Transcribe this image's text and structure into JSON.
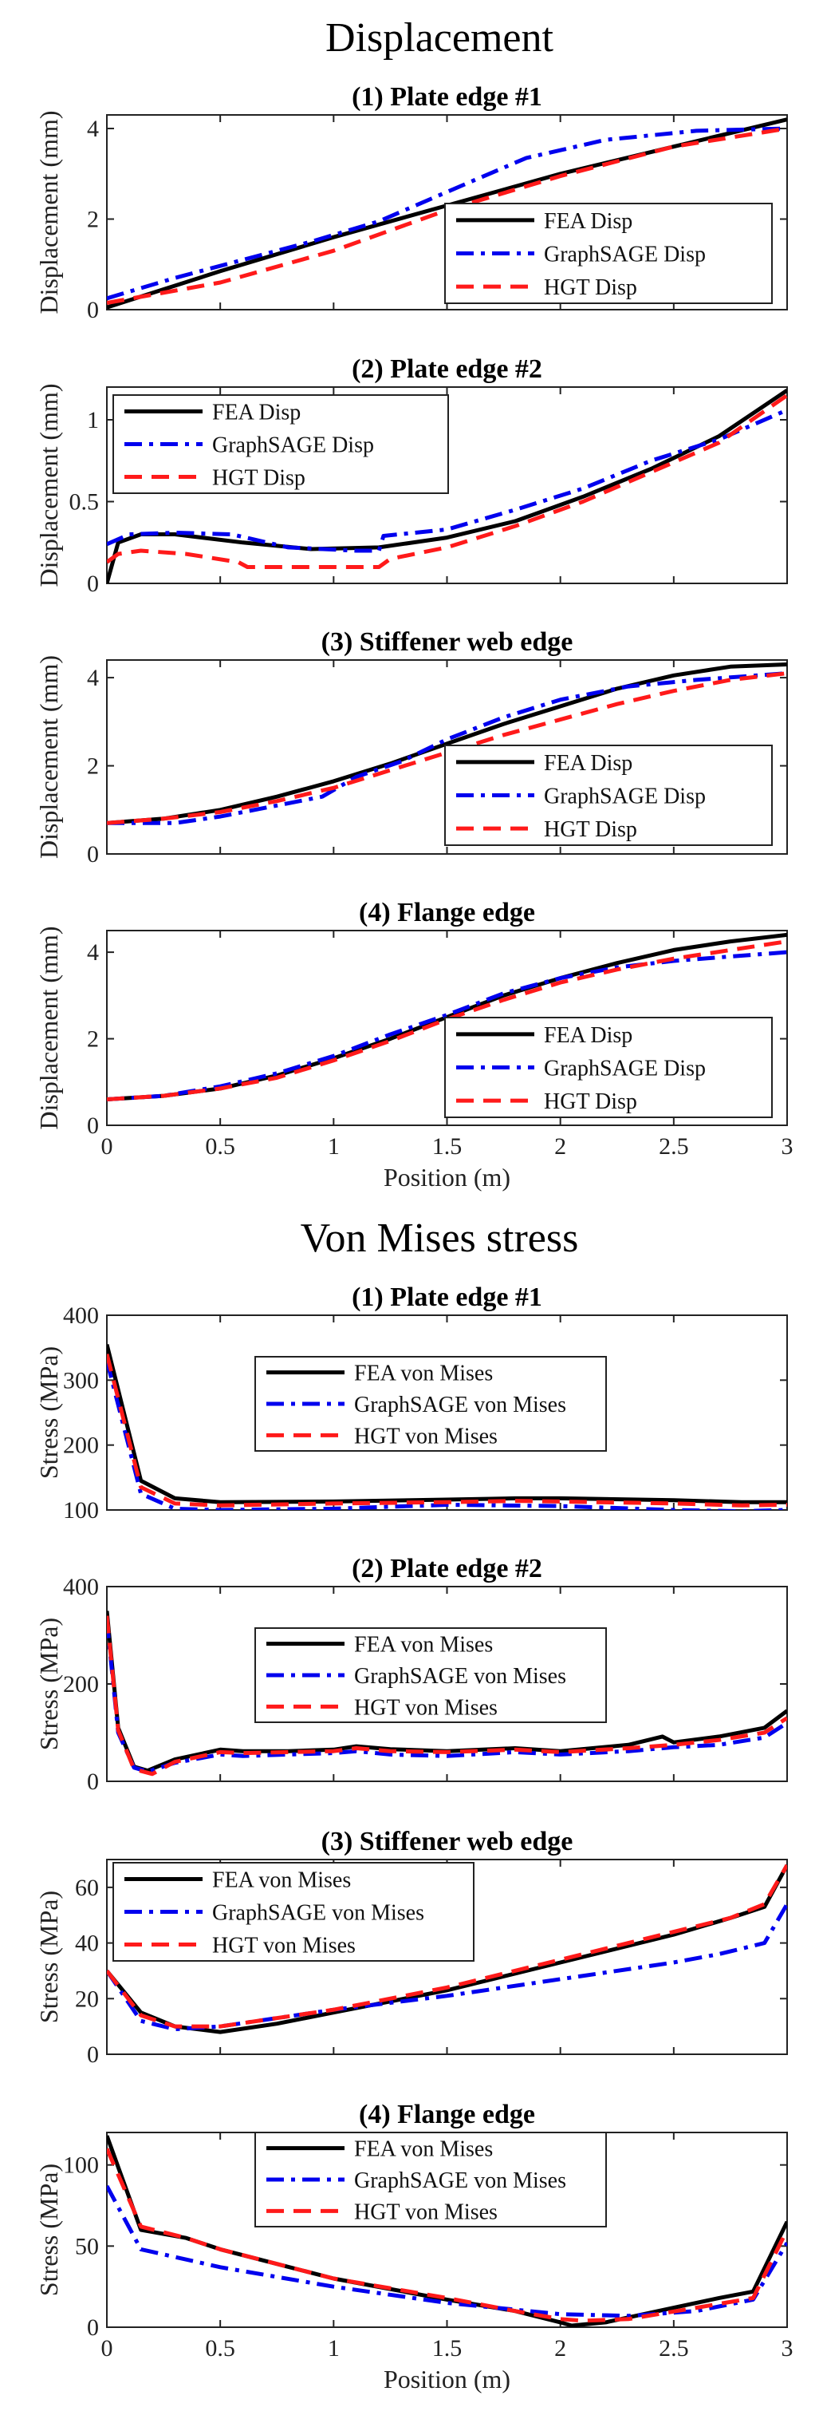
{
  "figure": {
    "displacement_title": "Displacement",
    "stress_title": "Von Mises stress"
  },
  "colors": {
    "fea": "#000000",
    "graphsage": "#0000ee",
    "hgt": "#ff1a1a"
  },
  "chart_data": [
    {
      "type": "line",
      "group": "displacement",
      "title": "(1) Plate edge #1",
      "xlabel": "",
      "ylabel": "Displacement (mm)",
      "xlim": [
        0,
        3
      ],
      "ylim": [
        0,
        4.3
      ],
      "xticks": [],
      "yticks": [
        0,
        2,
        4
      ],
      "legend_loc": "bottom-right",
      "series": [
        {
          "name": "FEA Disp",
          "style": "fea",
          "x": [
            0,
            0.5,
            1.0,
            1.5,
            2.0,
            2.5,
            3.0
          ],
          "y": [
            0.05,
            0.85,
            1.6,
            2.3,
            3.0,
            3.6,
            4.2
          ]
        },
        {
          "name": "GraphSAGE Disp",
          "style": "graphsage",
          "x": [
            0,
            0.3,
            0.6,
            0.9,
            1.2,
            1.5,
            1.85,
            2.2,
            2.6,
            3.0
          ],
          "y": [
            0.25,
            0.7,
            1.1,
            1.5,
            1.95,
            2.6,
            3.35,
            3.75,
            3.95,
            4.0
          ]
        },
        {
          "name": "HGT Disp",
          "style": "hgt",
          "x": [
            0,
            0.5,
            1.0,
            1.5,
            2.0,
            2.5,
            3.0
          ],
          "y": [
            0.15,
            0.6,
            1.3,
            2.2,
            2.95,
            3.6,
            4.0
          ]
        }
      ]
    },
    {
      "type": "line",
      "group": "displacement",
      "title": "(2) Plate edge #2",
      "xlabel": "",
      "ylabel": "Displacement (mm)",
      "xlim": [
        0,
        3
      ],
      "ylim": [
        0,
        1.2
      ],
      "xticks": [],
      "yticks": [
        0,
        0.5,
        1
      ],
      "legend_loc": "top-left",
      "series": [
        {
          "name": "FEA Disp",
          "style": "fea",
          "x": [
            0,
            0.05,
            0.15,
            0.3,
            0.6,
            0.9,
            1.2,
            1.5,
            1.8,
            2.1,
            2.4,
            2.7,
            3.0
          ],
          "y": [
            0.0,
            0.25,
            0.3,
            0.3,
            0.25,
            0.21,
            0.22,
            0.28,
            0.38,
            0.53,
            0.7,
            0.9,
            1.18
          ]
        },
        {
          "name": "GraphSAGE Disp",
          "style": "graphsage",
          "x": [
            0,
            0.1,
            0.3,
            0.55,
            0.8,
            1.1,
            1.2,
            1.22,
            1.5,
            1.8,
            2.1,
            2.4,
            2.7,
            3.0
          ],
          "y": [
            0.24,
            0.3,
            0.31,
            0.3,
            0.22,
            0.2,
            0.2,
            0.29,
            0.33,
            0.45,
            0.58,
            0.75,
            0.88,
            1.06
          ]
        },
        {
          "name": "HGT Disp",
          "style": "hgt",
          "x": [
            0,
            0.05,
            0.15,
            0.35,
            0.58,
            0.62,
            0.8,
            1.0,
            1.2,
            1.25,
            1.5,
            1.8,
            2.1,
            2.4,
            2.7,
            3.0
          ],
          "y": [
            0.13,
            0.18,
            0.2,
            0.18,
            0.13,
            0.1,
            0.1,
            0.1,
            0.1,
            0.15,
            0.22,
            0.35,
            0.5,
            0.68,
            0.86,
            1.15
          ]
        }
      ]
    },
    {
      "type": "line",
      "group": "displacement",
      "title": "(3) Stiffener web edge",
      "xlabel": "",
      "ylabel": "Displacement (mm)",
      "xlim": [
        0,
        3
      ],
      "ylim": [
        0,
        4.4
      ],
      "xticks": [],
      "yticks": [
        0,
        2,
        4
      ],
      "legend_loc": "bottom-right",
      "series": [
        {
          "name": "FEA Disp",
          "style": "fea",
          "x": [
            0,
            0.25,
            0.5,
            0.75,
            1.0,
            1.25,
            1.5,
            1.75,
            2.0,
            2.25,
            2.5,
            2.75,
            3.0
          ],
          "y": [
            0.7,
            0.8,
            1.0,
            1.3,
            1.65,
            2.05,
            2.5,
            2.95,
            3.35,
            3.75,
            4.05,
            4.25,
            4.3
          ]
        },
        {
          "name": "GraphSAGE Disp",
          "style": "graphsage",
          "x": [
            0,
            0.3,
            0.5,
            0.75,
            0.95,
            1.1,
            1.3,
            1.5,
            1.75,
            2.0,
            2.3,
            2.6,
            3.0
          ],
          "y": [
            0.7,
            0.7,
            0.85,
            1.1,
            1.3,
            1.75,
            2.1,
            2.6,
            3.1,
            3.5,
            3.8,
            3.95,
            4.1
          ]
        },
        {
          "name": "HGT Disp",
          "style": "hgt",
          "x": [
            0,
            0.25,
            0.5,
            0.75,
            1.0,
            1.25,
            1.5,
            1.75,
            2.0,
            2.25,
            2.5,
            2.75,
            3.0
          ],
          "y": [
            0.7,
            0.8,
            0.95,
            1.2,
            1.5,
            1.9,
            2.3,
            2.7,
            3.05,
            3.4,
            3.7,
            3.95,
            4.1
          ]
        }
      ]
    },
    {
      "type": "line",
      "group": "displacement",
      "title": "(4) Flange edge",
      "xlabel": "Position (m)",
      "ylabel": "Displacement (mm)",
      "xlim": [
        0,
        3
      ],
      "ylim": [
        0,
        4.5
      ],
      "xticks": [
        0,
        0.5,
        1,
        1.5,
        2,
        2.5,
        3
      ],
      "yticks": [
        0,
        2,
        4
      ],
      "legend_loc": "bottom-right",
      "series": [
        {
          "name": "FEA Disp",
          "style": "fea",
          "x": [
            0,
            0.25,
            0.5,
            0.75,
            1.0,
            1.25,
            1.5,
            1.75,
            2.0,
            2.25,
            2.5,
            2.75,
            3.0
          ],
          "y": [
            0.6,
            0.68,
            0.85,
            1.15,
            1.55,
            2.0,
            2.5,
            3.0,
            3.4,
            3.75,
            4.05,
            4.25,
            4.4
          ]
        },
        {
          "name": "GraphSAGE Disp",
          "style": "graphsage",
          "x": [
            0,
            0.25,
            0.5,
            0.75,
            1.0,
            1.25,
            1.5,
            1.75,
            2.0,
            2.25,
            2.5,
            2.75,
            3.0
          ],
          "y": [
            0.6,
            0.68,
            0.9,
            1.2,
            1.6,
            2.1,
            2.55,
            3.05,
            3.4,
            3.65,
            3.8,
            3.9,
            4.0
          ]
        },
        {
          "name": "HGT Disp",
          "style": "hgt",
          "x": [
            0,
            0.25,
            0.5,
            0.75,
            1.0,
            1.25,
            1.5,
            1.75,
            2.0,
            2.25,
            2.5,
            2.75,
            3.0
          ],
          "y": [
            0.6,
            0.68,
            0.85,
            1.1,
            1.5,
            1.95,
            2.45,
            2.9,
            3.3,
            3.6,
            3.85,
            4.05,
            4.25
          ]
        }
      ]
    },
    {
      "type": "line",
      "group": "stress",
      "title": "(1) Plate edge #1",
      "xlabel": "",
      "ylabel": "Stress (MPa)",
      "xlim": [
        0,
        3
      ],
      "ylim": [
        100,
        400
      ],
      "xticks": [],
      "yticks": [
        100,
        200,
        300,
        400
      ],
      "legend_loc": "center",
      "series": [
        {
          "name": "FEA von Mises",
          "style": "fea",
          "x": [
            0,
            0.15,
            0.3,
            0.5,
            1.0,
            1.5,
            1.8,
            2.0,
            2.5,
            2.8,
            3.0
          ],
          "y": [
            355,
            145,
            118,
            112,
            113,
            116,
            118,
            118,
            115,
            112,
            112
          ]
        },
        {
          "name": "GraphSAGE von Mises",
          "style": "graphsage",
          "x": [
            0,
            0.15,
            0.3,
            0.5,
            1.0,
            1.5,
            2.0,
            2.5,
            2.8,
            3.0
          ],
          "y": [
            330,
            125,
            102,
            100,
            102,
            108,
            106,
            100,
            98,
            100
          ]
        },
        {
          "name": "HGT von Mises",
          "style": "hgt",
          "x": [
            0,
            0.15,
            0.3,
            0.5,
            1.0,
            1.5,
            1.8,
            2.0,
            2.5,
            2.8,
            3.0
          ],
          "y": [
            340,
            135,
            110,
            107,
            110,
            112,
            114,
            113,
            110,
            107,
            108
          ]
        }
      ]
    },
    {
      "type": "line",
      "group": "stress",
      "title": "(2) Plate edge #2",
      "xlabel": "",
      "ylabel": "Stress (MPa)",
      "xlim": [
        0,
        3
      ],
      "ylim": [
        0,
        400
      ],
      "xticks": [],
      "yticks": [
        0,
        200,
        400
      ],
      "legend_loc": "center-right",
      "series": [
        {
          "name": "FEA von Mises",
          "style": "fea",
          "x": [
            0,
            0.05,
            0.12,
            0.18,
            0.3,
            0.5,
            0.6,
            0.8,
            1.0,
            1.1,
            1.25,
            1.5,
            1.8,
            2.0,
            2.3,
            2.45,
            2.5,
            2.7,
            2.9,
            3.0
          ],
          "y": [
            350,
            110,
            30,
            22,
            45,
            65,
            62,
            62,
            65,
            72,
            66,
            62,
            68,
            62,
            75,
            92,
            80,
            92,
            110,
            145
          ]
        },
        {
          "name": "GraphSAGE von Mises",
          "style": "graphsage",
          "x": [
            0,
            0.05,
            0.12,
            0.18,
            0.3,
            0.5,
            0.6,
            0.8,
            1.0,
            1.1,
            1.25,
            1.5,
            1.8,
            2.0,
            2.3,
            2.5,
            2.7,
            2.9,
            3.0
          ],
          "y": [
            330,
            100,
            28,
            20,
            38,
            55,
            52,
            55,
            58,
            62,
            55,
            52,
            60,
            55,
            62,
            70,
            75,
            90,
            120
          ]
        },
        {
          "name": "HGT von Mises",
          "style": "hgt",
          "x": [
            0,
            0.05,
            0.12,
            0.2,
            0.3,
            0.5,
            0.6,
            0.8,
            1.0,
            1.1,
            1.25,
            1.5,
            1.8,
            2.0,
            2.3,
            2.5,
            2.7,
            2.9,
            3.0
          ],
          "y": [
            340,
            105,
            25,
            15,
            40,
            60,
            58,
            60,
            62,
            68,
            62,
            60,
            65,
            60,
            68,
            75,
            85,
            100,
            130
          ]
        }
      ]
    },
    {
      "type": "line",
      "group": "stress",
      "title": "(3) Stiffener web edge",
      "xlabel": "",
      "ylabel": "Stress (MPa)",
      "xlim": [
        0,
        3
      ],
      "ylim": [
        0,
        70
      ],
      "xticks": [],
      "yticks": [
        0,
        20,
        40,
        60
      ],
      "legend_loc": "top-left",
      "series": [
        {
          "name": "FEA von Mises",
          "style": "fea",
          "x": [
            0,
            0.15,
            0.3,
            0.5,
            0.75,
            1.0,
            1.5,
            2.0,
            2.5,
            2.75,
            2.9,
            3.0
          ],
          "y": [
            30,
            15,
            10,
            8,
            11,
            15,
            23,
            33,
            43,
            49,
            53,
            68
          ]
        },
        {
          "name": "GraphSAGE von Mises",
          "style": "graphsage",
          "x": [
            0,
            0.15,
            0.3,
            0.5,
            1.0,
            1.5,
            2.0,
            2.5,
            2.7,
            2.9,
            3.0
          ],
          "y": [
            30,
            12,
            9,
            10,
            16,
            21,
            27,
            33,
            36,
            40,
            54
          ]
        },
        {
          "name": "HGT von Mises",
          "style": "hgt",
          "x": [
            0,
            0.15,
            0.3,
            0.5,
            1.0,
            1.5,
            2.0,
            2.5,
            2.75,
            2.9,
            3.0
          ],
          "y": [
            30,
            14,
            10,
            10,
            16,
            24,
            34,
            44,
            49,
            54,
            68
          ]
        }
      ]
    },
    {
      "type": "line",
      "group": "stress",
      "title": "(4) Flange edge",
      "xlabel": "Position (m)",
      "ylabel": "Stress (MPa)",
      "xlim": [
        0,
        3
      ],
      "ylim": [
        0,
        120
      ],
      "xticks": [
        0,
        0.5,
        1,
        1.5,
        2,
        2.5,
        3
      ],
      "yticks": [
        0,
        50,
        100
      ],
      "legend_loc": "top-center",
      "series": [
        {
          "name": "FEA von Mises",
          "style": "fea",
          "x": [
            0,
            0.15,
            0.35,
            0.5,
            1.0,
            1.5,
            1.8,
            2.0,
            2.05,
            2.2,
            2.5,
            2.7,
            2.85,
            3.0
          ],
          "y": [
            118,
            60,
            55,
            48,
            30,
            17,
            10,
            3,
            1,
            3,
            12,
            18,
            22,
            65
          ]
        },
        {
          "name": "GraphSAGE von Mises",
          "style": "graphsage",
          "x": [
            0,
            0.15,
            0.5,
            1.0,
            1.5,
            2.0,
            2.3,
            2.6,
            2.85,
            3.0
          ],
          "y": [
            87,
            48,
            37,
            25,
            15,
            8,
            7,
            10,
            17,
            52
          ]
        },
        {
          "name": "HGT von Mises",
          "style": "hgt",
          "x": [
            0,
            0.15,
            0.35,
            0.5,
            1.0,
            1.5,
            1.8,
            2.0,
            2.1,
            2.3,
            2.6,
            2.85,
            3.0
          ],
          "y": [
            110,
            62,
            55,
            48,
            30,
            18,
            10,
            5,
            4,
            5,
            12,
            18,
            60
          ]
        }
      ]
    }
  ]
}
